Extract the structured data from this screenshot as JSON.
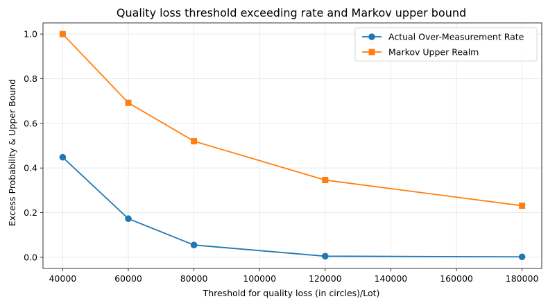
{
  "chart_data": {
    "type": "line",
    "title": "Quality loss threshold exceeding rate and Markov upper bound",
    "xlabel": "Threshold for quality loss (in circles)/Lot)",
    "ylabel": "Excess Probability & Upper Bound",
    "x": [
      40000,
      60000,
      80000,
      120000,
      180000
    ],
    "xlim": [
      34000,
      186000
    ],
    "ylim": [
      -0.05,
      1.05
    ],
    "xticks": [
      40000,
      60000,
      80000,
      100000,
      120000,
      140000,
      160000,
      180000
    ],
    "yticks": [
      0.0,
      0.2,
      0.4,
      0.6,
      0.8,
      1.0
    ],
    "xtick_labels": [
      "40000",
      "60000",
      "80000",
      "100000",
      "120000",
      "140000",
      "160000",
      "180000"
    ],
    "ytick_labels": [
      "0.0",
      "0.2",
      "0.4",
      "0.6",
      "0.8",
      "1.0"
    ],
    "grid": true,
    "legend_position": "top-right",
    "series": [
      {
        "name": "Actual Over-Measurement Rate",
        "values": [
          0.448,
          0.173,
          0.055,
          0.005,
          0.002
        ],
        "color": "#1f77b4",
        "marker": "circle"
      },
      {
        "name": "Markov Upper Realm",
        "values": [
          1.0,
          0.692,
          0.52,
          0.346,
          0.231
        ],
        "color": "#ff7f0e",
        "marker": "square"
      }
    ]
  }
}
